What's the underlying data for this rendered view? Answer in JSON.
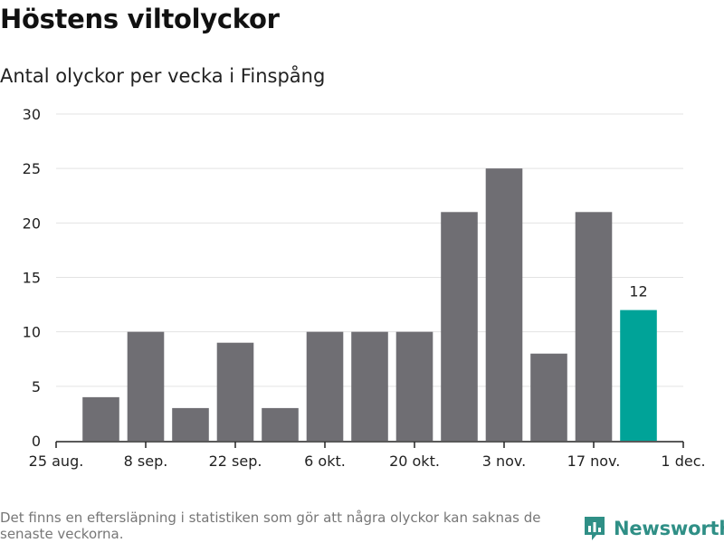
{
  "header": {
    "title": "Höstens viltolyckor",
    "subtitle": "Antal olyckor per vecka i Finspång"
  },
  "footer": {
    "note": "Det finns en eftersläpning i statistiken som gör att några olyckor kan saknas de senaste veckorna.",
    "brand": "Newsworthy",
    "logo_icon": "newsworthy-chart-bubble-icon"
  },
  "colors": {
    "bar": "#6f6e73",
    "highlight": "#00a398",
    "grid": "#e3e3e3",
    "axis": "#222222"
  },
  "chart_data": {
    "type": "bar",
    "title": "Höstens viltolyckor",
    "subtitle": "Antal olyckor per vecka i Finspång",
    "xlabel": "",
    "ylabel": "",
    "ylim": [
      0,
      30
    ],
    "yticks": [
      0,
      5,
      10,
      15,
      20,
      25,
      30
    ],
    "x_tick_labels": [
      "25 aug.",
      "8 sep.",
      "22 sep.",
      "6 okt.",
      "20 okt.",
      "3 nov.",
      "17 nov.",
      "1 dec."
    ],
    "x_tick_dates": [
      "2025-08-25",
      "2025-09-08",
      "2025-09-22",
      "2025-10-06",
      "2025-10-20",
      "2025-11-03",
      "2025-11-17",
      "2025-12-01"
    ],
    "x_range": [
      "2025-08-25",
      "2025-12-01"
    ],
    "categories": [
      "2025-09-01",
      "2025-09-08",
      "2025-09-15",
      "2025-09-22",
      "2025-09-29",
      "2025-10-06",
      "2025-10-13",
      "2025-10-20",
      "2025-10-27",
      "2025-11-03",
      "2025-11-10",
      "2025-11-17",
      "2025-11-24"
    ],
    "values": [
      4,
      10,
      3,
      9,
      3,
      10,
      10,
      10,
      21,
      25,
      8,
      21,
      12
    ],
    "highlight_index": 12,
    "data_labels": [
      {
        "index": 12,
        "text": "12"
      }
    ],
    "grid": true,
    "legend": "none"
  }
}
